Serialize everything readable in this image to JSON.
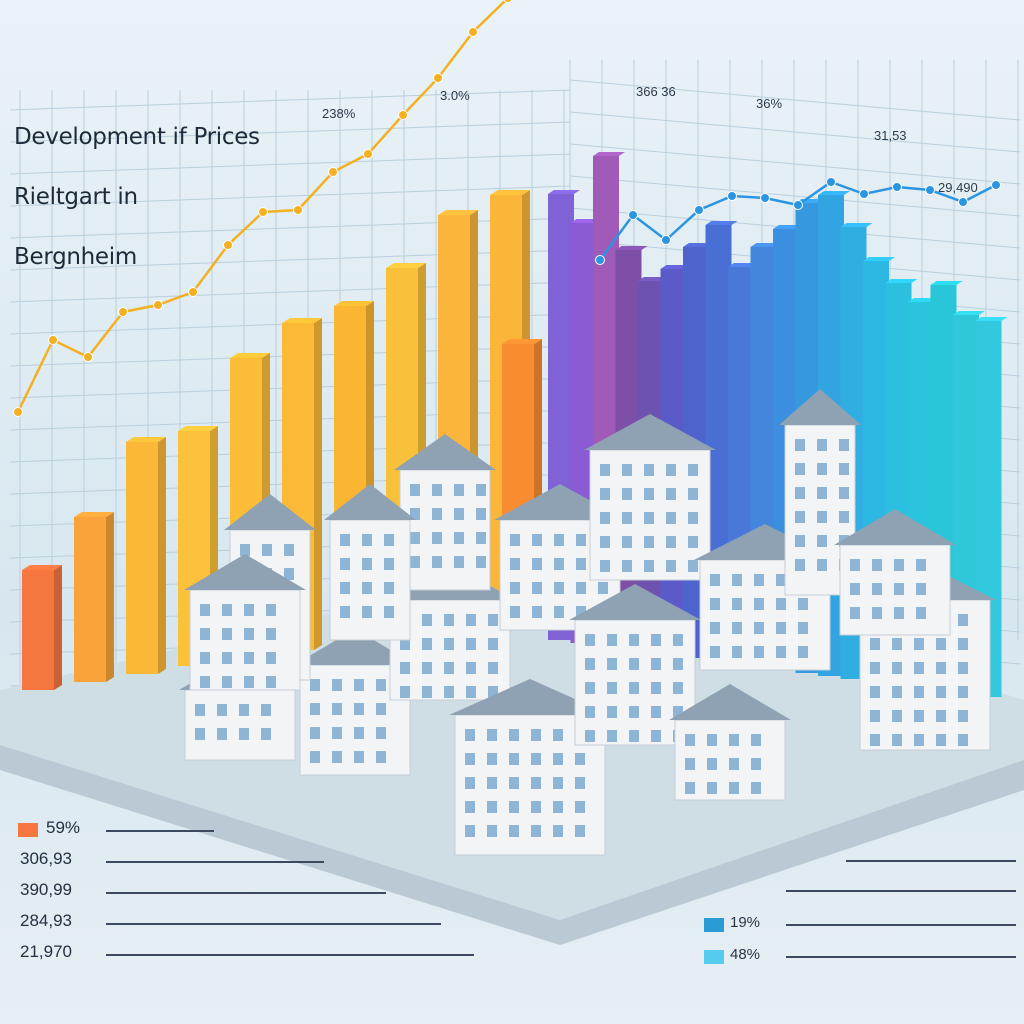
{
  "chart_data": {
    "type": "bar",
    "title_lines": [
      "Development if Prices",
      "Rieltgart  in",
      "Bergnheim"
    ],
    "series": [
      {
        "group": "warm",
        "values": [
          120,
          165,
          232,
          235,
          300,
          327,
          336,
          366,
          411,
          423,
          266
        ],
        "colors": [
          "#f5763f",
          "#f9a33a",
          "#fbb838",
          "#fbc13a",
          "#fbbd38",
          "#fbb935",
          "#fab533",
          "#f9c03a",
          "#fbb53a",
          "#fbb538",
          "#f98c30"
        ]
      },
      {
        "group": "cool",
        "values": [
          446,
          420,
          490,
          399,
          371,
          386,
          411,
          436,
          397,
          420,
          441,
          470,
          481,
          452,
          421,
          402,
          386,
          406,
          379,
          376
        ],
        "colors": [
          "#7e62d6",
          "#8a5bd2",
          "#a05ab8",
          "#7d4fa6",
          "#6d52b0",
          "#5a5ac8",
          "#4e63cb",
          "#4a6fd4",
          "#4a78d8",
          "#4287dc",
          "#3c8fe0",
          "#3699e0",
          "#32a4e2",
          "#30aee2",
          "#2cb8e2",
          "#2bc0e0",
          "#2ac4dd",
          "#28c6d8",
          "#2fc8da",
          "#32c8de"
        ]
      }
    ],
    "trend_line_warm": {
      "color": "#f5b021",
      "values": [
        40,
        112,
        95,
        140,
        147,
        160,
        207,
        240,
        242,
        280,
        298,
        337,
        374,
        420,
        454
      ]
    },
    "trend_line_cool": {
      "color": "#2a95e2",
      "values": [
        300,
        345,
        320,
        350,
        364,
        362,
        355,
        378,
        366,
        373,
        370,
        358,
        375
      ]
    },
    "annotations": [
      {
        "text": "238%",
        "color": "#2d3a4a"
      },
      {
        "text": "3.0%",
        "color": "#2d3a4a"
      },
      {
        "text": "366 36",
        "color": "#2d3a4a"
      },
      {
        "text": "36%",
        "color": "#2d3a4a"
      },
      {
        "text": "31,53",
        "color": "#2d3a4a"
      },
      {
        "text": "29,490",
        "color": "#2d3a4a"
      }
    ]
  },
  "legend_left": [
    {
      "text": "59%",
      "color": "#f5763f"
    },
    {
      "text": "306,93",
      "color": ""
    },
    {
      "text": "390,99",
      "color": ""
    },
    {
      "text": "284,93",
      "color": ""
    },
    {
      "text": "21,970",
      "color": ""
    }
  ],
  "legend_right": [
    {
      "text": "19%",
      "color": "#2b9bd6"
    },
    {
      "text": "48%",
      "color": "#55ccee"
    }
  ],
  "colors": {
    "grid": "#b9cfdc",
    "base": "#cfdde5",
    "house_roof": "#8fa2b3",
    "house_wall": "#f2f4f6"
  }
}
